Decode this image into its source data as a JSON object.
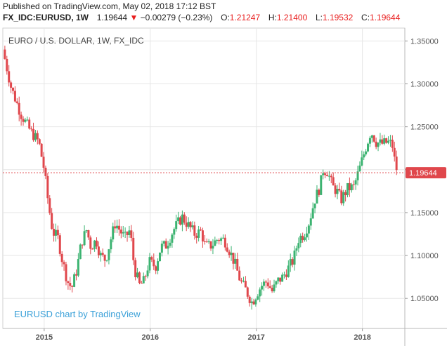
{
  "published": "Published on TradingView.com, May 02, 2018 17:12 BST",
  "header": {
    "symbol": "FX_IDC:EURUSD, 1W",
    "last": "1.19644",
    "arrow": "▼",
    "change": "−0.00279 (−0.23%)",
    "o_label": "O:",
    "o_value": "1.21247",
    "h_label": "H:",
    "h_value": "1.21400",
    "l_label": "L:",
    "l_value": "1.19532",
    "c_label": "C:",
    "c_value": "1.19644"
  },
  "colors": {
    "up": "#3cb371",
    "down": "#e0474c",
    "price_line": "#e0474c",
    "grid": "#e6e6e6",
    "watermark": "#3aa0d8"
  },
  "chart_data": {
    "type": "candlestick",
    "title": "EURO / U.S. DOLLAR, 1W, FX_IDC",
    "watermark": "EURUSD chart by TradingView",
    "ylim": [
      1.015,
      1.365
    ],
    "xlim": [
      2014.61,
      2018.4
    ],
    "yticks": [
      "1.35000",
      "1.30000",
      "1.25000",
      "1.20000",
      "1.15000",
      "1.10000",
      "1.05000"
    ],
    "xticks": [
      "2015",
      "2016",
      "2017",
      "2018"
    ],
    "last_price_label": "1.19644",
    "last_price": 1.19644,
    "grid": true,
    "anchors": [
      [
        2014.61,
        1.34
      ],
      [
        2014.69,
        1.295
      ],
      [
        2014.78,
        1.265
      ],
      [
        2014.87,
        1.245
      ],
      [
        2014.95,
        1.232
      ],
      [
        2015.0,
        1.2
      ],
      [
        2015.04,
        1.16
      ],
      [
        2015.08,
        1.128
      ],
      [
        2015.13,
        1.12
      ],
      [
        2015.17,
        1.095
      ],
      [
        2015.22,
        1.07
      ],
      [
        2015.26,
        1.062
      ],
      [
        2015.31,
        1.085
      ],
      [
        2015.35,
        1.115
      ],
      [
        2015.4,
        1.13
      ],
      [
        2015.44,
        1.11
      ],
      [
        2015.49,
        1.118
      ],
      [
        2015.53,
        1.1
      ],
      [
        2015.58,
        1.095
      ],
      [
        2015.63,
        1.12
      ],
      [
        2015.67,
        1.138
      ],
      [
        2015.72,
        1.128
      ],
      [
        2015.76,
        1.12
      ],
      [
        2015.81,
        1.13
      ],
      [
        2015.85,
        1.085
      ],
      [
        2015.9,
        1.065
      ],
      [
        2015.94,
        1.07
      ],
      [
        2015.99,
        1.093
      ],
      [
        2016.05,
        1.087
      ],
      [
        2016.1,
        1.11
      ],
      [
        2016.15,
        1.112
      ],
      [
        2016.22,
        1.13
      ],
      [
        2016.3,
        1.145
      ],
      [
        2016.36,
        1.135
      ],
      [
        2016.42,
        1.125
      ],
      [
        2016.48,
        1.128
      ],
      [
        2016.52,
        1.11
      ],
      [
        2016.58,
        1.112
      ],
      [
        2016.64,
        1.12
      ],
      [
        2016.7,
        1.118
      ],
      [
        2016.75,
        1.105
      ],
      [
        2016.8,
        1.09
      ],
      [
        2016.85,
        1.07
      ],
      [
        2016.9,
        1.06
      ],
      [
        2016.96,
        1.045
      ],
      [
        2017.0,
        1.055
      ],
      [
        2017.05,
        1.065
      ],
      [
        2017.1,
        1.07
      ],
      [
        2017.15,
        1.058
      ],
      [
        2017.2,
        1.07
      ],
      [
        2017.25,
        1.075
      ],
      [
        2017.3,
        1.085
      ],
      [
        2017.35,
        1.095
      ],
      [
        2017.4,
        1.12
      ],
      [
        2017.45,
        1.125
      ],
      [
        2017.5,
        1.14
      ],
      [
        2017.55,
        1.165
      ],
      [
        2017.6,
        1.18
      ],
      [
        2017.63,
        1.2
      ],
      [
        2017.67,
        1.198
      ],
      [
        2017.72,
        1.18
      ],
      [
        2017.76,
        1.175
      ],
      [
        2017.8,
        1.165
      ],
      [
        2017.86,
        1.178
      ],
      [
        2017.92,
        1.18
      ],
      [
        2017.97,
        1.2
      ],
      [
        2018.03,
        1.225
      ],
      [
        2018.08,
        1.245
      ],
      [
        2018.13,
        1.232
      ],
      [
        2018.18,
        1.23
      ],
      [
        2018.24,
        1.232
      ],
      [
        2018.28,
        1.23
      ],
      [
        2018.3,
        1.213
      ],
      [
        2018.33,
        1.1964
      ]
    ]
  }
}
